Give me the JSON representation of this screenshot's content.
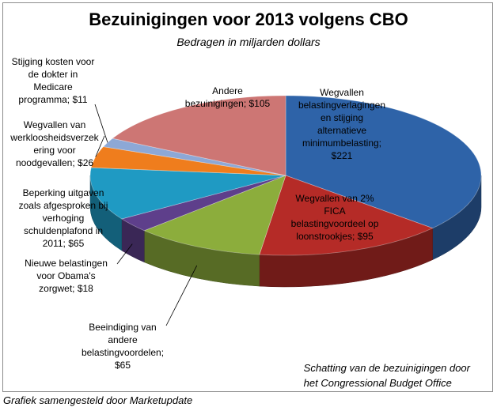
{
  "title": "Bezuinigingen voor 2013 volgens CBO",
  "subtitle": "Bedragen in miljarden dollars",
  "note": [
    "Schatting van de bezuinigingen door",
    "het Congressional Budget Office"
  ],
  "footer": "Grafiek samengesteld door Marketupdate",
  "chart_data": {
    "type": "pie",
    "title": "Bezuinigingen voor 2013 volgens CBO",
    "subtitle": "Bedragen in miljarden dollars",
    "slices": [
      {
        "label_lines": [
          "Wegvallen",
          "belastingverlagingen",
          "en stijging",
          "alternatieve",
          "minimumbelasting;",
          "$221"
        ],
        "value": 221,
        "color": "#2e63a8"
      },
      {
        "label_lines": [
          "Wegvallen van 2%",
          "FICA",
          "belastingvoordeel op",
          "loonstrookjes; $95"
        ],
        "value": 95,
        "color": "#b52b27"
      },
      {
        "label_lines": [
          "Beeindiging van",
          "andere",
          "belastingvoordelen;",
          "$65"
        ],
        "value": 65,
        "color": "#8cad3c"
      },
      {
        "label_lines": [
          "Nieuwe belastingen",
          "voor Obama's",
          "zorgwet; $18"
        ],
        "value": 18,
        "color": "#5e3f8b"
      },
      {
        "label_lines": [
          "Beperking uitgaven",
          "zoals afgesproken bij",
          "verhoging",
          "schuldenplafond in",
          "2011; $65"
        ],
        "value": 65,
        "color": "#1f9ac3"
      },
      {
        "label_lines": [
          "Wegvallen van",
          "werkloosheidsverzek",
          "ering voor",
          "noodgevallen; $26"
        ],
        "value": 26,
        "color": "#ef7d1d"
      },
      {
        "label_lines": [
          "Stijging kosten voor",
          "de dokter in",
          "Medicare",
          "programma; $11"
        ],
        "value": 11,
        "color": "#8da8d6"
      },
      {
        "label_lines": [
          "Andere",
          "bezuinigingen; $105"
        ],
        "value": 105,
        "color": "#cd7674"
      }
    ]
  }
}
